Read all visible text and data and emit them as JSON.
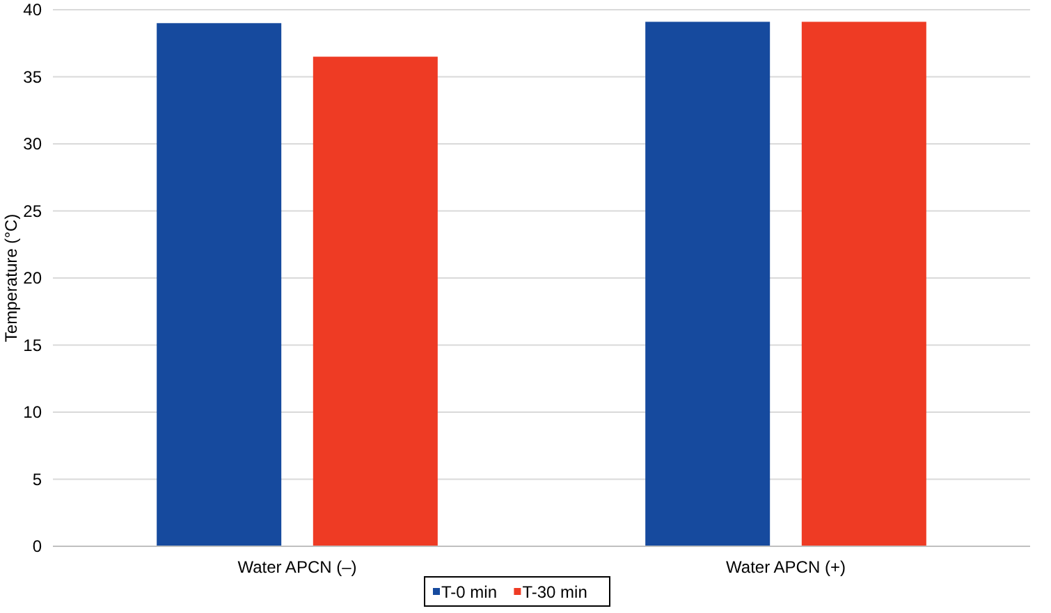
{
  "chart_data": {
    "type": "bar",
    "ylabel": "Temperature (°C)",
    "categories": [
      "Water APCN (–)",
      "Water APCN (+)"
    ],
    "series": [
      {
        "name": "T-0 min",
        "color": "#164a9e",
        "values": [
          39.0,
          39.1
        ]
      },
      {
        "name": "T-30 min",
        "color": "#ee3b24",
        "values": [
          36.5,
          39.1
        ]
      }
    ],
    "ylim": [
      0,
      40
    ],
    "yticks": [
      0,
      5,
      10,
      15,
      20,
      25,
      30,
      35,
      40
    ],
    "grid": "y",
    "legend": "bottom"
  }
}
